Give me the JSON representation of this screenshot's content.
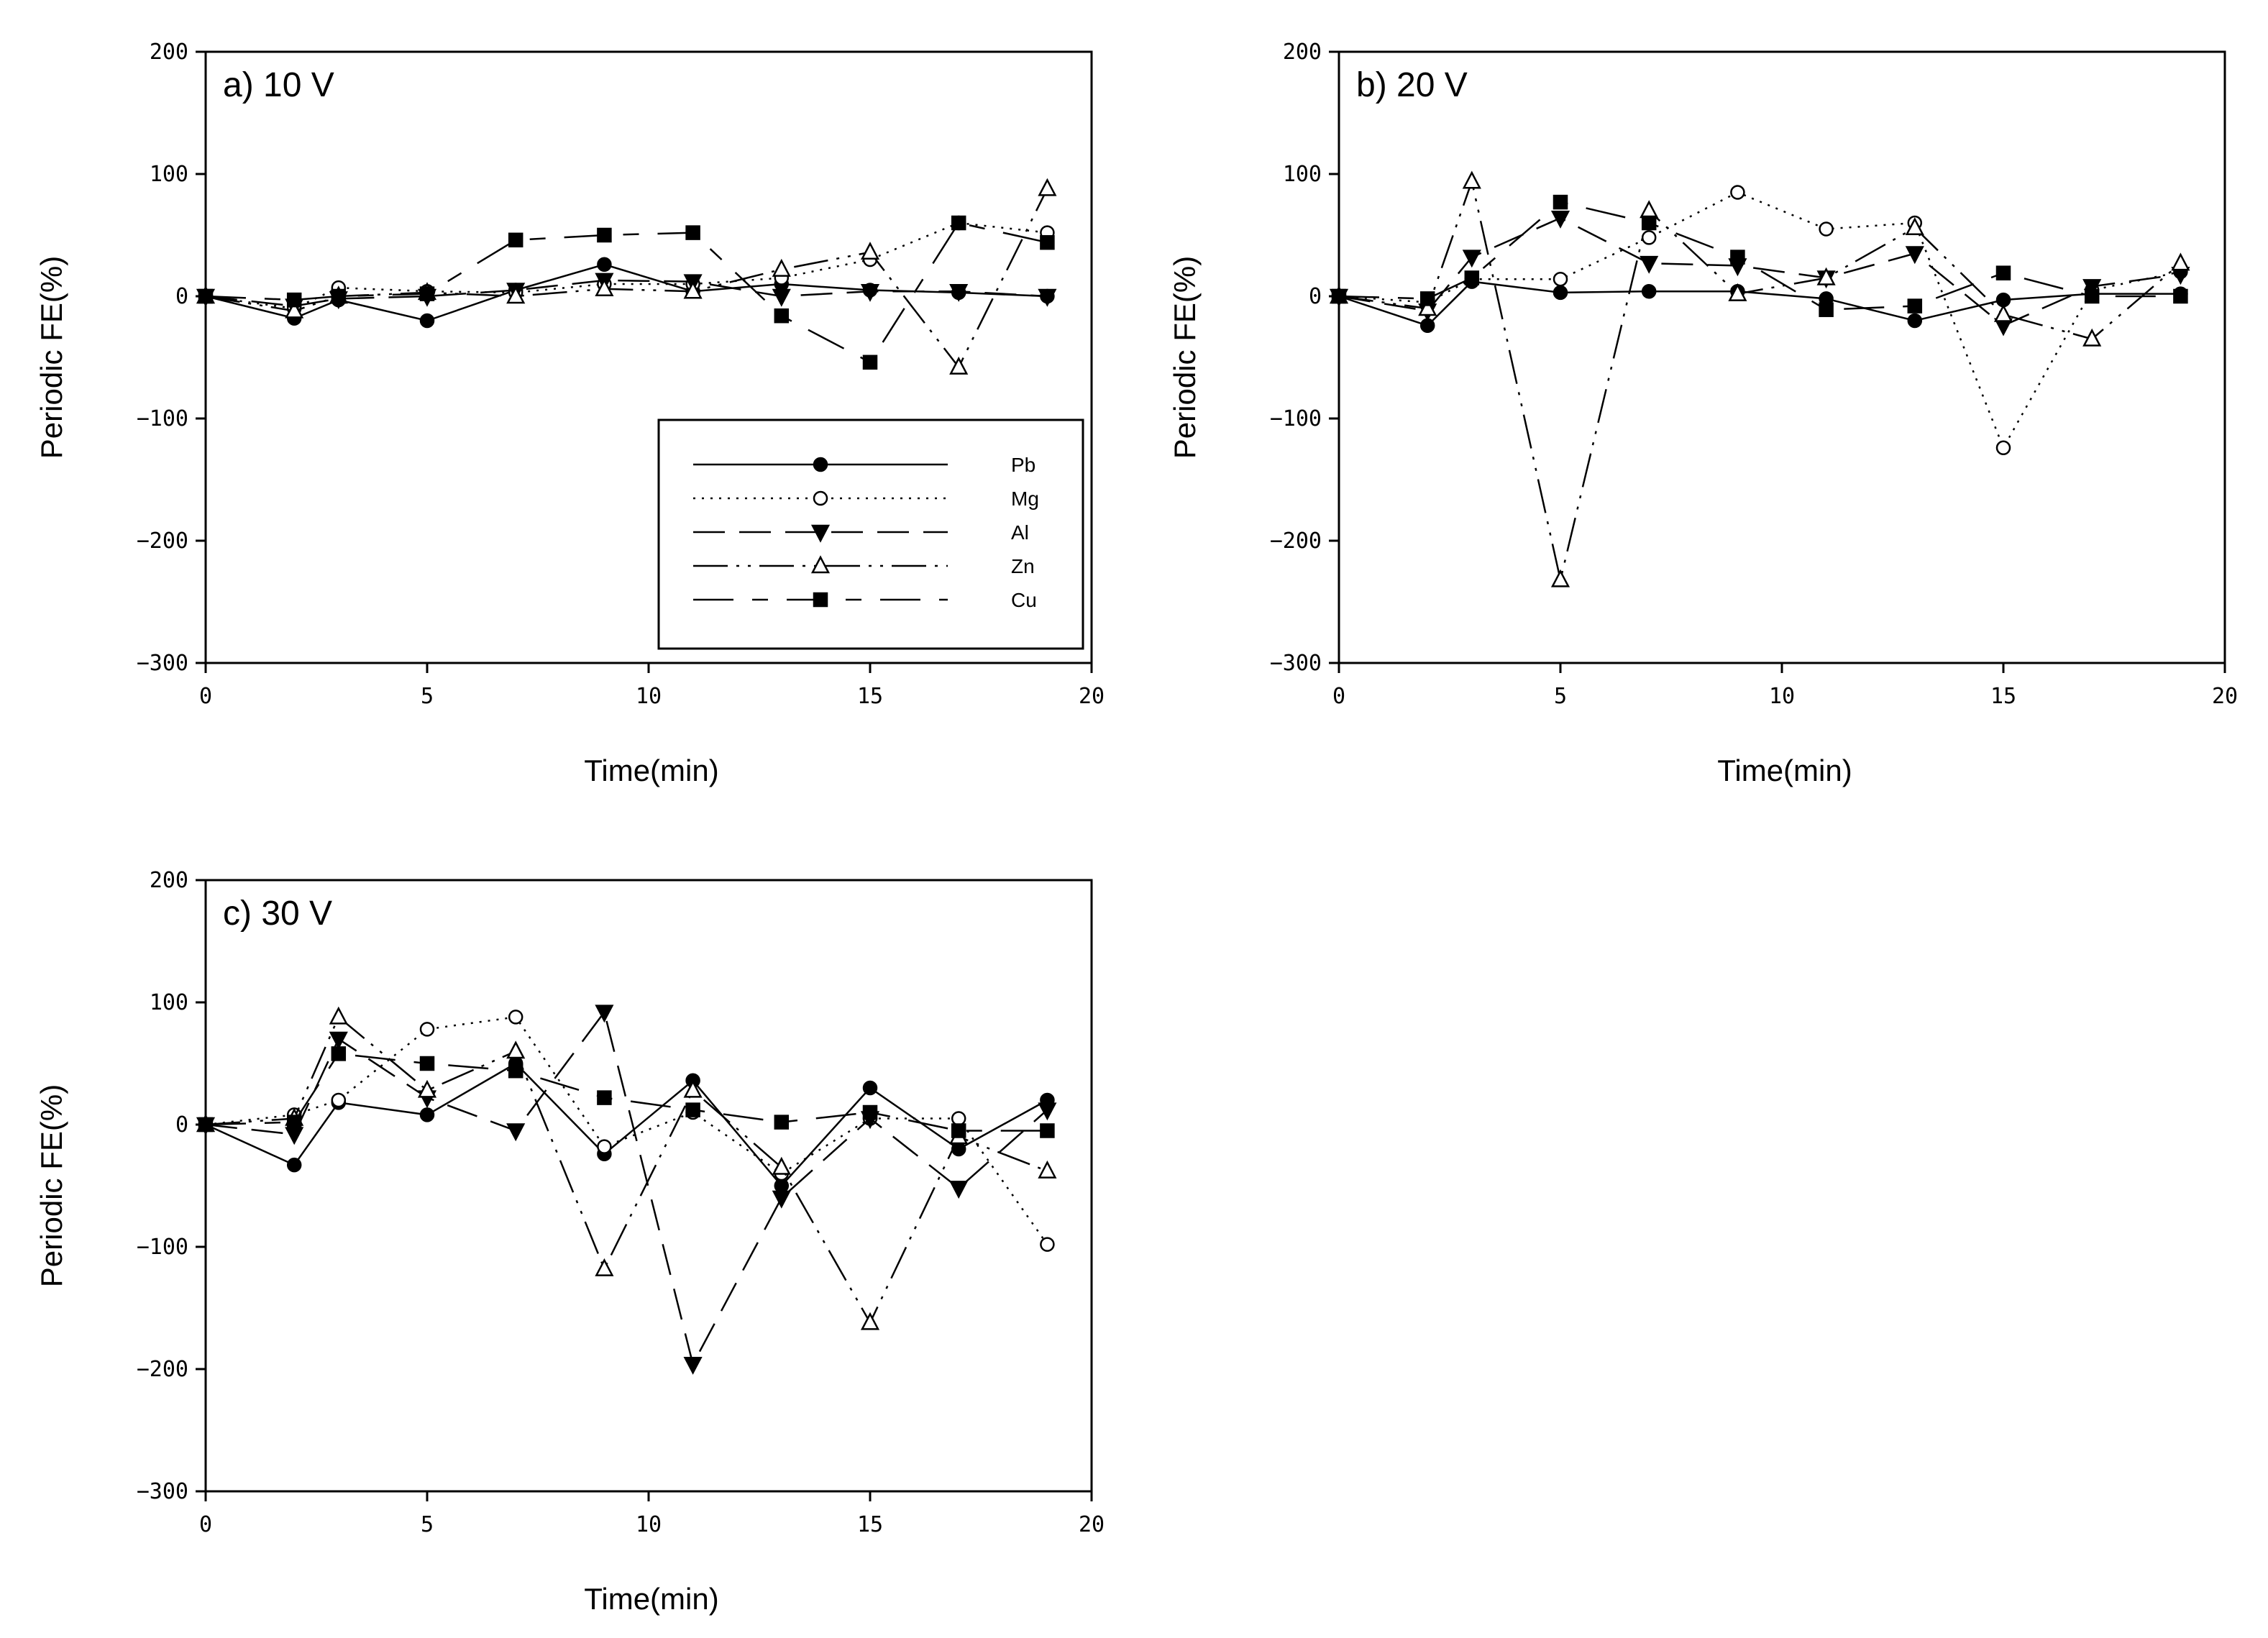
{
  "chart_data": [
    {
      "type": "line",
      "title": "a) 10 V",
      "xlabel": "Time(min)",
      "ylabel": "Periodic FE(%)",
      "xlim": [
        0,
        20
      ],
      "ylim": [
        -300,
        200
      ],
      "xticks": [
        0,
        5,
        10,
        15,
        20
      ],
      "yticks": [
        200,
        100,
        0,
        -100,
        -200,
        -300
      ],
      "ytick_labels": [
        "200",
        "100",
        "0",
        "−100",
        "−200",
        "−300"
      ],
      "x": [
        0,
        2,
        3,
        5,
        7,
        9,
        11,
        13,
        15,
        17,
        19
      ],
      "legend": true,
      "legend_position": "bottom-right",
      "series": [
        {
          "name": "Pb",
          "values": [
            0,
            -18,
            -3,
            -20,
            5,
            26,
            4,
            10,
            5,
            3,
            0
          ]
        },
        {
          "name": "Mg",
          "values": [
            0,
            -10,
            7,
            4,
            3,
            10,
            10,
            15,
            30,
            60,
            52
          ]
        },
        {
          "name": "Al",
          "values": [
            0,
            -8,
            -2,
            0,
            5,
            13,
            12,
            0,
            4,
            4,
            0
          ]
        },
        {
          "name": "Zn",
          "values": [
            0,
            -12,
            0,
            3,
            0,
            6,
            4,
            22,
            36,
            -58,
            88
          ]
        },
        {
          "name": "Cu",
          "values": [
            0,
            -3,
            0,
            2,
            46,
            50,
            52,
            -16,
            -54,
            60,
            44
          ]
        }
      ]
    },
    {
      "type": "line",
      "title": "b) 20 V",
      "xlabel": "Time(min)",
      "ylabel": "Periodic FE(%)",
      "xlim": [
        0,
        20
      ],
      "ylim": [
        -300,
        200
      ],
      "xticks": [
        0,
        5,
        10,
        15,
        20
      ],
      "yticks": [
        200,
        100,
        0,
        -100,
        -200,
        -300
      ],
      "ytick_labels": [
        "200",
        "100",
        "0",
        "−100",
        "−200",
        "−300"
      ],
      "x": [
        0,
        2,
        3,
        5,
        7,
        9,
        11,
        13,
        15,
        17,
        19
      ],
      "legend": false,
      "series": [
        {
          "name": "Pb",
          "values": [
            0,
            -24,
            12,
            3,
            4,
            4,
            -2,
            -20,
            -3,
            2,
            2
          ]
        },
        {
          "name": "Mg",
          "values": [
            0,
            -5,
            14,
            14,
            48,
            85,
            55,
            60,
            -124,
            5,
            20
          ]
        },
        {
          "name": "Al",
          "values": [
            0,
            -12,
            32,
            64,
            27,
            25,
            15,
            35,
            -24,
            8,
            18
          ]
        },
        {
          "name": "Zn",
          "values": [
            0,
            -10,
            94,
            -232,
            70,
            2,
            15,
            56,
            -15,
            -35,
            27
          ]
        },
        {
          "name": "Cu",
          "values": [
            0,
            -2,
            15,
            77,
            60,
            32,
            -11,
            -8,
            19,
            0,
            0
          ]
        }
      ]
    },
    {
      "type": "line",
      "title": "c) 30 V",
      "xlabel": "Time(min)",
      "ylabel": "Periodic FE(%)",
      "xlim": [
        0,
        20
      ],
      "ylim": [
        -300,
        200
      ],
      "xticks": [
        0,
        5,
        10,
        15,
        20
      ],
      "yticks": [
        200,
        100,
        0,
        -100,
        -200,
        -300
      ],
      "ytick_labels": [
        "200",
        "100",
        "0",
        "−100",
        "−200",
        "−300"
      ],
      "x": [
        0,
        2,
        3,
        5,
        7,
        9,
        11,
        13,
        15,
        17,
        19
      ],
      "legend": false,
      "series": [
        {
          "name": "Pb",
          "values": [
            0,
            -33,
            18,
            8,
            50,
            -24,
            36,
            -50,
            30,
            -20,
            20
          ]
        },
        {
          "name": "Mg",
          "values": [
            0,
            8,
            20,
            78,
            88,
            -18,
            10,
            -40,
            5,
            5,
            -98
          ]
        },
        {
          "name": "Al",
          "values": [
            0,
            -8,
            70,
            22,
            -5,
            92,
            -196,
            -60,
            5,
            -52,
            12
          ]
        },
        {
          "name": "Zn",
          "values": [
            0,
            5,
            88,
            28,
            60,
            -118,
            28,
            -35,
            -162,
            -10,
            -38
          ]
        },
        {
          "name": "Cu",
          "values": [
            0,
            2,
            58,
            50,
            44,
            22,
            12,
            2,
            10,
            -5,
            -5
          ]
        }
      ]
    }
  ]
}
